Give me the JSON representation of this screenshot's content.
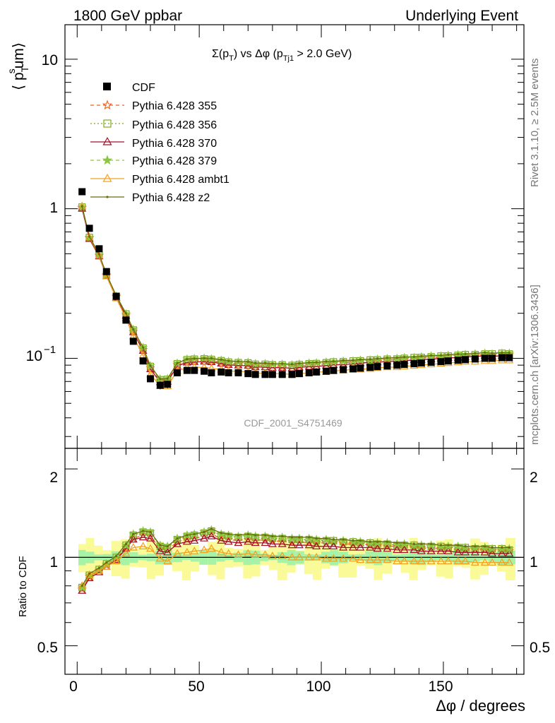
{
  "header": {
    "left": "1800 GeV ppbar",
    "right": "Underlying Event"
  },
  "side_labels": {
    "rivet": "Rivet 3.1.10, ≥ 2.5M events",
    "mcplots": "mcplots.cern.ch [arXiv:1306.3436]"
  },
  "watermark": "CDF_2001_S4751469",
  "chart_data": [
    {
      "type": "line",
      "title": "Σ(p_T) vs Δφ (p_Tj1 > 2.0 GeV)",
      "title_parts": {
        "a": "Σ(p",
        "b": "T",
        "c": ") vs Δφ (p",
        "d": "Tj1",
        "e": " > 2.0 GeV)"
      },
      "ylabel_parts": {
        "a": "⟨ p",
        "sub": "T",
        "sup": "s",
        "b": "um⟩"
      },
      "ylabel": "⟨ p_T^s um⟩",
      "yscale": "log",
      "xlim": [
        -5,
        183
      ],
      "ylim": [
        0.025,
        17
      ],
      "y_tick_labels": {
        "ten": "10",
        "one": "1",
        "tenth_base": "10",
        "tenth_exp": "−1"
      },
      "legend_position": "top-left",
      "series_template": {
        "x": [
          2,
          5,
          9,
          12,
          16,
          20,
          23,
          27,
          30,
          34,
          37,
          41,
          45,
          48,
          52,
          55,
          59,
          62,
          66,
          70,
          73,
          77,
          80,
          84,
          88,
          91,
          95,
          98,
          102,
          105,
          109,
          113,
          116,
          120,
          123,
          127,
          131,
          134,
          138,
          141,
          145,
          149,
          152,
          156,
          159,
          163,
          167,
          170,
          174,
          177
        ],
        "cdf_y": [
          1.3,
          0.74,
          0.54,
          0.38,
          0.26,
          0.18,
          0.13,
          0.096,
          0.073,
          0.066,
          0.067,
          0.08,
          0.083,
          0.083,
          0.082,
          0.08,
          0.081,
          0.08,
          0.08,
          0.079,
          0.078,
          0.078,
          0.078,
          0.078,
          0.078,
          0.079,
          0.08,
          0.081,
          0.082,
          0.083,
          0.084,
          0.085,
          0.086,
          0.087,
          0.088,
          0.089,
          0.09,
          0.091,
          0.092,
          0.093,
          0.094,
          0.095,
          0.096,
          0.097,
          0.098,
          0.099,
          0.1,
          0.1,
          0.101,
          0.101
        ],
        "cdf_err": [
          0.04,
          0.03,
          0.02,
          0.015,
          0.01,
          0.008,
          0.006,
          0.005,
          0.004,
          0.004,
          0.004,
          0.004,
          0.004,
          0.004,
          0.004,
          0.004,
          0.004,
          0.004,
          0.004,
          0.004,
          0.004,
          0.004,
          0.004,
          0.004,
          0.004,
          0.004,
          0.004,
          0.004,
          0.004,
          0.004,
          0.004,
          0.004,
          0.004,
          0.004,
          0.004,
          0.004,
          0.004,
          0.004,
          0.004,
          0.004,
          0.004,
          0.004,
          0.004,
          0.004,
          0.004,
          0.004,
          0.004,
          0.004,
          0.004,
          0.004
        ]
      },
      "series": [
        {
          "name": "CDF",
          "role": "data",
          "color": "#000000",
          "marker": "filled-square"
        },
        {
          "name": "Pythia 6.428 355",
          "color": "#f0601e",
          "dash": "5,4",
          "marker": "open-star",
          "ratio": [
            0.78,
            0.86,
            0.9,
            0.94,
            0.99,
            1.08,
            1.16,
            1.19,
            1.18,
            1.07,
            1.06,
            1.13,
            1.15,
            1.16,
            1.18,
            1.2,
            1.16,
            1.15,
            1.14,
            1.15,
            1.14,
            1.15,
            1.14,
            1.13,
            1.13,
            1.12,
            1.13,
            1.12,
            1.12,
            1.12,
            1.11,
            1.11,
            1.11,
            1.1,
            1.1,
            1.09,
            1.09,
            1.09,
            1.08,
            1.08,
            1.07,
            1.07,
            1.07,
            1.06,
            1.06,
            1.06,
            1.06,
            1.05,
            1.05,
            1.05
          ]
        },
        {
          "name": "Pythia 6.428 356",
          "color": "#7fa622",
          "dash": "2,3",
          "marker": "open-square",
          "ratio": [
            0.79,
            0.87,
            0.91,
            0.95,
            1.0,
            1.1,
            1.19,
            1.22,
            1.21,
            1.09,
            1.08,
            1.15,
            1.18,
            1.19,
            1.21,
            1.23,
            1.19,
            1.18,
            1.17,
            1.18,
            1.17,
            1.17,
            1.16,
            1.16,
            1.15,
            1.15,
            1.15,
            1.14,
            1.14,
            1.14,
            1.13,
            1.13,
            1.12,
            1.12,
            1.11,
            1.11,
            1.1,
            1.1,
            1.1,
            1.09,
            1.09,
            1.09,
            1.08,
            1.08,
            1.08,
            1.07,
            1.07,
            1.07,
            1.07,
            1.06
          ]
        },
        {
          "name": "Pythia 6.428 370",
          "color": "#a01028",
          "dash": "",
          "marker": "open-triangle",
          "ratio": [
            0.77,
            0.85,
            0.89,
            0.93,
            0.98,
            1.07,
            1.15,
            1.17,
            1.16,
            1.05,
            1.04,
            1.11,
            1.13,
            1.14,
            1.16,
            1.18,
            1.14,
            1.13,
            1.12,
            1.13,
            1.12,
            1.12,
            1.11,
            1.11,
            1.1,
            1.1,
            1.1,
            1.09,
            1.09,
            1.09,
            1.08,
            1.08,
            1.08,
            1.08,
            1.07,
            1.07,
            1.06,
            1.06,
            1.06,
            1.05,
            1.05,
            1.05,
            1.05,
            1.04,
            1.04,
            1.04,
            1.04,
            1.03,
            1.03,
            1.03
          ]
        },
        {
          "name": "Pythia 6.428 379",
          "color": "#8cc63e",
          "dash": "5,4",
          "marker": "filled-star",
          "ratio": [
            0.79,
            0.87,
            0.91,
            0.95,
            1.0,
            1.1,
            1.2,
            1.23,
            1.22,
            1.1,
            1.09,
            1.16,
            1.19,
            1.2,
            1.22,
            1.24,
            1.2,
            1.19,
            1.18,
            1.19,
            1.18,
            1.18,
            1.17,
            1.17,
            1.16,
            1.16,
            1.16,
            1.15,
            1.15,
            1.14,
            1.14,
            1.13,
            1.13,
            1.12,
            1.12,
            1.12,
            1.11,
            1.11,
            1.1,
            1.1,
            1.1,
            1.09,
            1.09,
            1.09,
            1.08,
            1.08,
            1.08,
            1.07,
            1.07,
            1.07
          ]
        },
        {
          "name": "Pythia 6.428 ambt1",
          "color": "#f2a11f",
          "dash": "",
          "marker": "open-triangle",
          "ratio": [
            0.8,
            0.87,
            0.9,
            0.93,
            0.97,
            1.03,
            1.08,
            1.09,
            1.07,
            0.99,
            0.97,
            1.03,
            1.04,
            1.05,
            1.06,
            1.07,
            1.04,
            1.03,
            1.02,
            1.03,
            1.02,
            1.02,
            1.01,
            1.01,
            1.0,
            1.0,
            1.0,
            1.0,
            0.99,
            0.99,
            0.99,
            0.99,
            0.98,
            0.98,
            0.98,
            0.98,
            0.97,
            0.97,
            0.97,
            0.97,
            0.97,
            0.97,
            0.97,
            0.97,
            0.97,
            0.96,
            0.96,
            0.96,
            0.96,
            0.96
          ]
        },
        {
          "name": "Pythia 6.428 z2",
          "color": "#6b6b10",
          "dash": "",
          "marker": "small-dot",
          "ratio": [
            0.8,
            0.88,
            0.92,
            0.96,
            1.01,
            1.11,
            1.2,
            1.23,
            1.22,
            1.1,
            1.09,
            1.16,
            1.19,
            1.2,
            1.22,
            1.25,
            1.21,
            1.2,
            1.19,
            1.2,
            1.19,
            1.19,
            1.18,
            1.18,
            1.17,
            1.17,
            1.17,
            1.16,
            1.16,
            1.15,
            1.15,
            1.14,
            1.14,
            1.13,
            1.13,
            1.13,
            1.12,
            1.12,
            1.11,
            1.11,
            1.11,
            1.1,
            1.1,
            1.1,
            1.09,
            1.09,
            1.09,
            1.08,
            1.08,
            1.08
          ]
        }
      ]
    },
    {
      "type": "line",
      "ylabel": "Ratio to CDF",
      "xlabel": "Δφ / degrees",
      "xlim": [
        -5,
        183
      ],
      "ylim": [
        0.4,
        2.35
      ],
      "yscale": "log",
      "y_tick_labels": [
        "0.5",
        "1",
        "2"
      ],
      "x_tick_labels": [
        "0",
        "50",
        "100",
        "150"
      ],
      "bands": {
        "stat_color": "#a6f2a6",
        "total_color": "#fafa99",
        "stat_width": 0.05,
        "total_width": 0.11
      }
    }
  ]
}
